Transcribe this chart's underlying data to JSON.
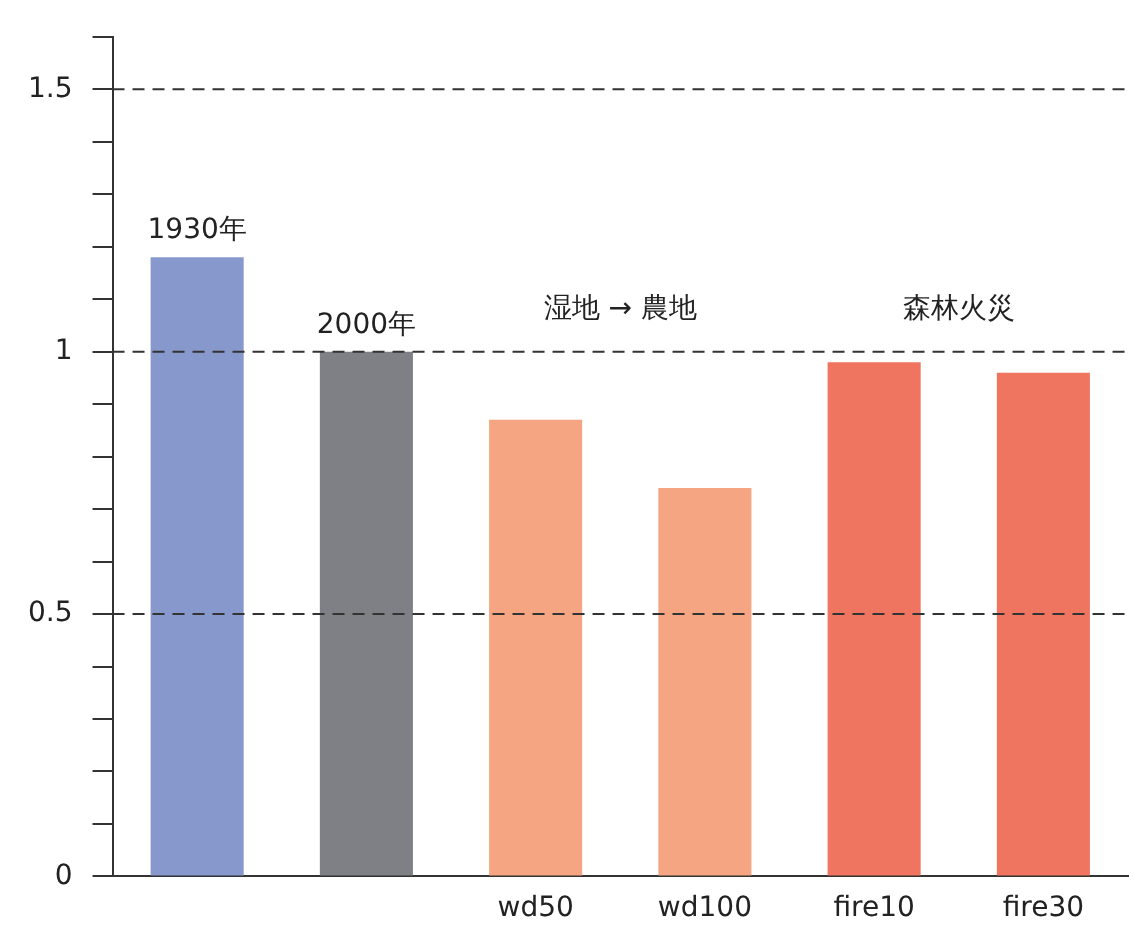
{
  "chart_data": {
    "type": "bar",
    "categories": [
      null,
      null,
      "wd50",
      "wd100",
      "fire10",
      "fire30"
    ],
    "series": [
      {
        "name": "1930年",
        "color": "#8798cc",
        "values": [
          1.18,
          null,
          null,
          null,
          null,
          null
        ]
      },
      {
        "name": "2000年",
        "color": "#7f8085",
        "values": [
          null,
          1.0,
          null,
          null,
          null,
          null
        ]
      },
      {
        "colors": [
          null,
          null,
          "#f6a582",
          "#f6a582",
          "#f07561",
          "#f07561"
        ],
        "values": [
          null,
          null,
          0.87,
          0.74,
          0.98,
          0.96
        ]
      }
    ],
    "ylim": [
      0,
      1.6
    ],
    "yticks": [
      0,
      {
        "value": 0.1,
        "label": null
      },
      {
        "value": 0.2,
        "label": null
      },
      {
        "value": 0.3,
        "label": null
      },
      {
        "value": 0.4,
        "label": null
      },
      0.5,
      {
        "value": 0.6,
        "label": null
      },
      {
        "value": 0.7,
        "label": null
      },
      {
        "value": 0.8,
        "label": null
      },
      {
        "value": 0.9,
        "label": null
      },
      1,
      {
        "value": 1.1,
        "label": null
      },
      {
        "value": 1.2,
        "label": null
      },
      {
        "value": 1.3,
        "label": null
      },
      {
        "value": 1.4,
        "label": null
      },
      1.5,
      {
        "value": 1.6,
        "label": null
      }
    ],
    "ref_lines": [
      {
        "axis": "y",
        "value": 0.5,
        "line_style": "dashed",
        "color": "#333333"
      },
      {
        "axis": "y",
        "value": 1,
        "line_style": "dashed",
        "color": "#333333"
      },
      {
        "axis": "y",
        "value": 1.5,
        "line_style": "dashed",
        "color": "#333333"
      }
    ],
    "annotations": [
      "湿地 → 農地",
      "森林火災"
    ],
    "grid": false,
    "legend": false
  }
}
